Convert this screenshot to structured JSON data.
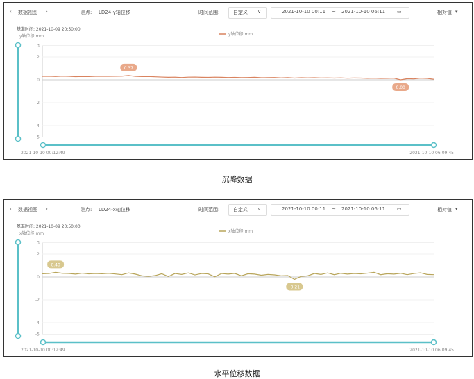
{
  "panels": [
    {
      "nav_label": "数据视图",
      "point_label": "测点:",
      "point_value": "LD24-y轴位移",
      "time_range_label": "时间范围:",
      "range_mode": "自定义",
      "start": "2021-10-10 00:11",
      "sep": "~",
      "end": "2021-10-10 06:11",
      "value_mode": "相对值",
      "base_time": "基准时间: 2021-10-09 20:50:00",
      "y_unit": "y轴位移 mm",
      "legend": "y轴位移 mm",
      "caption": "沉降数据",
      "slider_start": "2021-10-10 00:12:49",
      "slider_end": "2021-10-10 06:09:45",
      "chart_data": {
        "type": "line",
        "series": [
          {
            "name": "y轴位移 mm",
            "color": "#d9835f",
            "values": [
              0.3,
              0.31,
              0.29,
              0.32,
              0.3,
              0.27,
              0.29,
              0.28,
              0.3,
              0.31,
              0.3,
              0.31,
              0.32,
              0.37,
              0.3,
              0.28,
              0.29,
              0.26,
              0.24,
              0.22,
              0.23,
              0.2,
              0.23,
              0.24,
              0.22,
              0.21,
              0.23,
              0.22,
              0.2,
              0.21,
              0.19,
              0.2,
              0.22,
              0.18,
              0.19,
              0.2,
              0.17,
              0.19,
              0.15,
              0.18,
              0.17,
              0.18,
              0.16,
              0.17,
              0.15,
              0.17,
              0.14,
              0.16,
              0.15,
              0.13,
              0.14,
              0.12,
              0.13,
              0.14,
              0.0,
              0.1,
              0.08,
              0.14,
              0.12,
              0.05
            ]
          }
        ],
        "yticks": [
          "3",
          "2",
          "0",
          "-2",
          "-4",
          "-5"
        ],
        "ylim": [
          -5,
          3
        ],
        "max_label": "0.37",
        "min_label": "0.00",
        "label_color": "#e9a98a",
        "grid": true,
        "legend": "top-center"
      }
    },
    {
      "nav_label": "数据视图",
      "point_label": "测点:",
      "point_value": "LD24-x轴位移",
      "time_range_label": "时间范围:",
      "range_mode": "自定义",
      "start": "2021-10-10 00:11",
      "sep": "~",
      "end": "2021-10-10 06:11",
      "value_mode": "相对值",
      "base_time": "基准时间: 2021-10-09 20:50:00",
      "y_unit": "x轴位移 mm",
      "legend": "x轴位移 mm",
      "caption": "水平位移数据",
      "slider_start": "2021-10-10 00:12:49",
      "slider_end": "2021-10-10 06:09:45",
      "chart_data": {
        "type": "line",
        "series": [
          {
            "name": "x轴位移 mm",
            "color": "#b8a55a",
            "values": [
              0.28,
              0.3,
              0.4,
              0.32,
              0.3,
              0.25,
              0.33,
              0.27,
              0.3,
              0.28,
              0.32,
              0.26,
              0.2,
              0.35,
              0.25,
              0.1,
              0.05,
              0.12,
              0.28,
              0.04,
              0.3,
              0.22,
              0.35,
              0.18,
              0.3,
              0.27,
              0.02,
              0.3,
              0.25,
              0.31,
              0.1,
              0.28,
              0.25,
              0.15,
              0.22,
              0.18,
              0.1,
              0.12,
              -0.21,
              0.05,
              0.1,
              0.3,
              0.22,
              0.35,
              0.2,
              0.32,
              0.25,
              0.3,
              0.27,
              0.33,
              0.4,
              0.2,
              0.28,
              0.25,
              0.32,
              0.2,
              0.3,
              0.36,
              0.22,
              0.2
            ]
          }
        ],
        "yticks": [
          "3",
          "2",
          "0",
          "-2",
          "-4",
          "-5"
        ],
        "ylim": [
          -5,
          3
        ],
        "max_label": "0.40",
        "min_label": "-0.21",
        "label_color": "#d8c88f",
        "grid": true,
        "legend": "top-center"
      }
    }
  ],
  "accent": "#5bc0c8"
}
